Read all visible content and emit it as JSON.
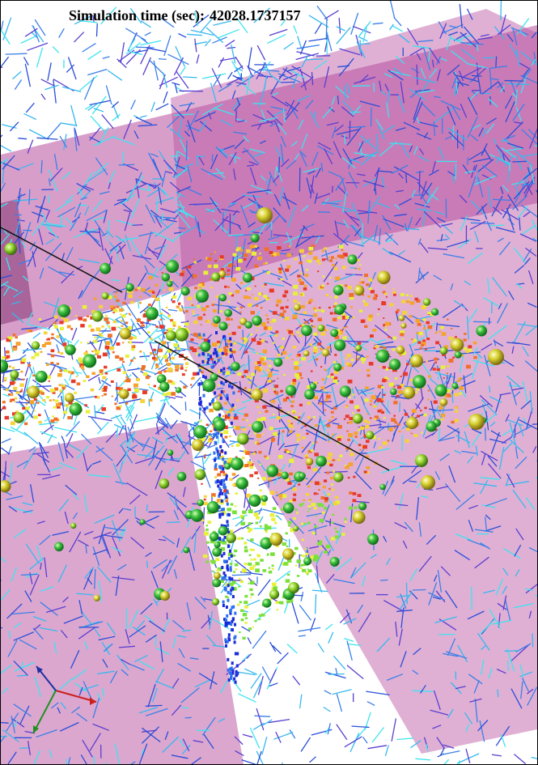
{
  "overlay": {
    "time_label": "Simulation time (sec):",
    "time_value": "42028.1737157"
  },
  "scene": {
    "background": "#ffffff",
    "plane_color": "#b84f9f",
    "mesh_colors": [
      "#2a4ed8",
      "#3b7fe8",
      "#37b8ef",
      "#3fe3f0",
      "#5a3fd0"
    ],
    "particle_colors": [
      "#22a83a",
      "#6ad02a",
      "#b6de2a",
      "#e8e23a",
      "#d9b040"
    ],
    "fracture_colors": [
      "#e83a2a",
      "#f0702a",
      "#f5a32a",
      "#f6d23a",
      "#e8f03a",
      "#7ae03a"
    ],
    "axes_colors": {
      "x": "#cc2020",
      "y": "#209020",
      "z": "#2030a0"
    }
  }
}
